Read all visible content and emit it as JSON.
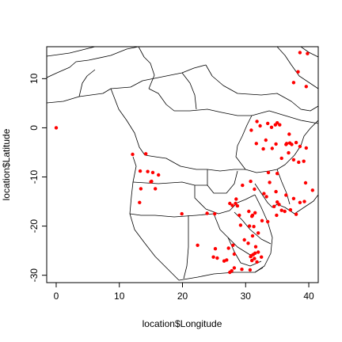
{
  "chart_data": {
    "type": "scatter",
    "title": "",
    "xlabel": "location$Longitude",
    "ylabel": "location$Latitude",
    "xlim": [
      -1.5,
      41.5
    ],
    "ylim": [
      -31.5,
      16.5
    ],
    "xticks": [
      0,
      10,
      20,
      30,
      40
    ],
    "yticks": [
      -30,
      -20,
      -10,
      0,
      10
    ],
    "grid": false,
    "legend": "none",
    "basemap": "country borders of central and southern Africa",
    "point_color": "#ff0000",
    "points": [
      [
        0,
        0
      ],
      [
        38.6,
        15.3
      ],
      [
        39.8,
        15.1
      ],
      [
        38.3,
        11.4
      ],
      [
        39.6,
        8.4
      ],
      [
        37.6,
        9.2
      ],
      [
        34.7,
        0.6
      ],
      [
        35.0,
        1.0
      ],
      [
        34.1,
        0.1
      ],
      [
        35.4,
        0.6
      ],
      [
        32.3,
        0.4
      ],
      [
        33.5,
        0.9
      ],
      [
        31.8,
        1.3
      ],
      [
        30.9,
        -0.5
      ],
      [
        33.2,
        -2.5
      ],
      [
        31.7,
        -3.2
      ],
      [
        32.8,
        -4.3
      ],
      [
        34.8,
        -3.3
      ],
      [
        36.5,
        -3.2
      ],
      [
        37.0,
        -3.1
      ],
      [
        36.4,
        -3.4
      ],
      [
        37.3,
        -3.4
      ],
      [
        38.0,
        -3.0
      ],
      [
        38.6,
        -3.8
      ],
      [
        39.6,
        -4.1
      ],
      [
        37.6,
        -6.5
      ],
      [
        38.4,
        -7.0
      ],
      [
        39.2,
        -6.8
      ],
      [
        36.8,
        -5.1
      ],
      [
        35.7,
        -6.2
      ],
      [
        35.0,
        -9.3
      ],
      [
        33.6,
        -9.1
      ],
      [
        33.8,
        -11.1
      ],
      [
        32.9,
        -13.4
      ],
      [
        33.3,
        -14.0
      ],
      [
        34.8,
        -13.0
      ],
      [
        35.3,
        -15.6
      ],
      [
        35.0,
        -15.1
      ],
      [
        34.5,
        -16.0
      ],
      [
        35.7,
        -16.8
      ],
      [
        34.9,
        -17.8
      ],
      [
        33.5,
        -19.1
      ],
      [
        36.2,
        -17.0
      ],
      [
        37.1,
        -16.7
      ],
      [
        38.0,
        -17.6
      ],
      [
        38.6,
        -15.2
      ],
      [
        39.3,
        -15.0
      ],
      [
        40.6,
        -12.7
      ],
      [
        39.5,
        -11.2
      ],
      [
        37.6,
        -14.4
      ],
      [
        36.4,
        -13.7
      ],
      [
        30.8,
        -10.9
      ],
      [
        31.4,
        -12.5
      ],
      [
        29.5,
        -11.7
      ],
      [
        28.5,
        -14.5
      ],
      [
        27.5,
        -15.4
      ],
      [
        28.7,
        -15.9
      ],
      [
        27.9,
        -15.8
      ],
      [
        29.0,
        -17.8
      ],
      [
        31.1,
        -17.8
      ],
      [
        30.5,
        -17.0
      ],
      [
        31.0,
        -18.0
      ],
      [
        31.5,
        -17.3
      ],
      [
        32.6,
        -18.9
      ],
      [
        31.3,
        -20.1
      ],
      [
        30.6,
        -20.0
      ],
      [
        32.0,
        -21.4
      ],
      [
        31.1,
        -22.0
      ],
      [
        29.8,
        -22.8
      ],
      [
        30.4,
        -23.5
      ],
      [
        31.6,
        -24.2
      ],
      [
        32.0,
        -25.3
      ],
      [
        31.2,
        -25.8
      ],
      [
        30.8,
        -26.2
      ],
      [
        31.4,
        -26.6
      ],
      [
        30.9,
        -26.0
      ],
      [
        31.0,
        -27.0
      ],
      [
        31.8,
        -27.3
      ],
      [
        32.5,
        -26.3
      ],
      [
        31.5,
        -25.5
      ],
      [
        30.7,
        -28.9
      ],
      [
        29.4,
        -28.8
      ],
      [
        28.2,
        -28.5
      ],
      [
        27.8,
        -29.1
      ],
      [
        27.5,
        -29.4
      ],
      [
        27.0,
        -26.9
      ],
      [
        26.6,
        -27.1
      ],
      [
        28.2,
        -25.7
      ],
      [
        27.3,
        -24.5
      ],
      [
        28.0,
        -23.9
      ],
      [
        25.2,
        -24.6
      ],
      [
        24.9,
        -26.3
      ],
      [
        22.4,
        -23.9
      ],
      [
        25.1,
        -17.5
      ],
      [
        23.9,
        -17.4
      ],
      [
        19.9,
        -17.5
      ],
      [
        13.3,
        -8.8
      ],
      [
        14.5,
        -8.9
      ],
      [
        16.2,
        -9.6
      ],
      [
        15.1,
        -10.9
      ],
      [
        15.7,
        -12.4
      ],
      [
        13.4,
        -12.4
      ],
      [
        12.1,
        -5.4
      ],
      [
        14.2,
        -5.3
      ],
      [
        15.3,
        -9.1
      ],
      [
        13.2,
        -15.2
      ],
      [
        15.0,
        -11.0
      ],
      [
        25.5,
        -26.5
      ],
      [
        28.4,
        -15.4
      ],
      [
        29.2,
        -19.8
      ],
      [
        36.9,
        -1.3
      ],
      [
        34.2,
        -4.2
      ]
    ]
  }
}
